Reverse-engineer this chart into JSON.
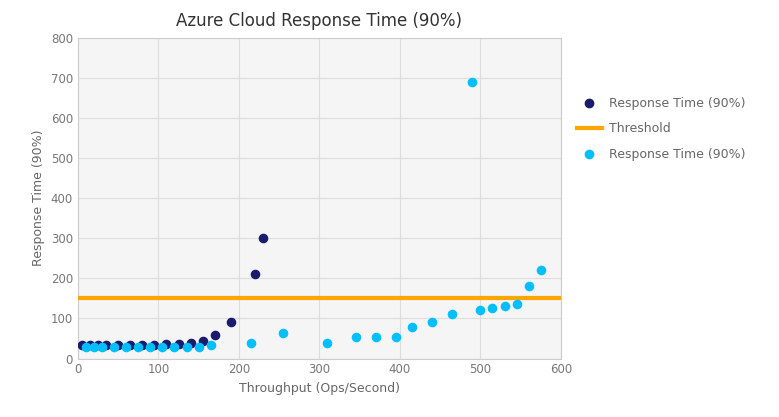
{
  "title": "Azure Cloud Response Time (90%)",
  "xlabel": "Throughput (Ops/Second)",
  "ylabel": "Response Time (90%)",
  "threshold": 150,
  "threshold_color": "#FFA500",
  "xlim": [
    0,
    600
  ],
  "ylim": [
    0,
    800
  ],
  "xticks": [
    0,
    100,
    200,
    300,
    400,
    500,
    600
  ],
  "yticks": [
    0,
    100,
    200,
    300,
    400,
    500,
    600,
    700,
    800
  ],
  "dark_blue_color": "#1B1B6E",
  "cyan_color": "#00BFFF",
  "background_color": "#FFFFFF",
  "plot_bg_color": "#F5F5F5",
  "grid_color": "#DDDDDD",
  "series1_label": "Response Time (90%)",
  "series2_label": "Threshold",
  "series3_label": "Response Time (90%)",
  "dark_blue_x": [
    5,
    15,
    25,
    35,
    50,
    65,
    80,
    95,
    110,
    125,
    140,
    155,
    170,
    190,
    220,
    230
  ],
  "dark_blue_y": [
    35,
    33,
    35,
    33,
    34,
    34,
    35,
    35,
    36,
    37,
    40,
    45,
    60,
    92,
    210,
    300
  ],
  "cyan_x": [
    10,
    20,
    30,
    45,
    60,
    75,
    90,
    105,
    120,
    135,
    150,
    165,
    215,
    255,
    310,
    345,
    370,
    395,
    415,
    440,
    465,
    490,
    500,
    515,
    530,
    545,
    560,
    575
  ],
  "cyan_y": [
    30,
    28,
    29,
    30,
    29,
    28,
    30,
    29,
    30,
    29,
    30,
    35,
    40,
    65,
    40,
    55,
    55,
    55,
    78,
    90,
    110,
    690,
    120,
    125,
    130,
    135,
    180,
    220
  ],
  "title_fontsize": 12,
  "axis_label_fontsize": 9,
  "tick_fontsize": 8.5,
  "legend_fontsize": 9,
  "marker_size": 35,
  "threshold_linewidth": 3.0
}
